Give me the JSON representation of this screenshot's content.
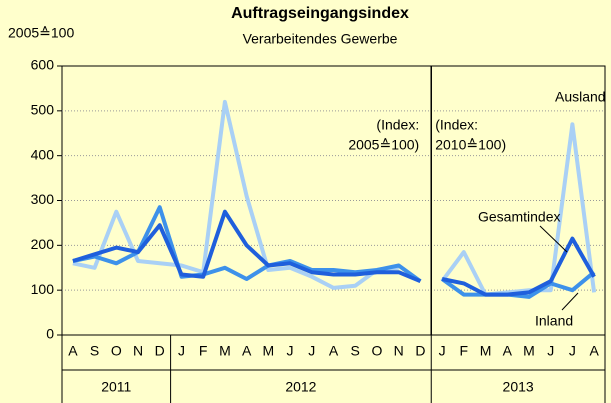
{
  "chart_data": {
    "type": "line",
    "title": "Auftragseingangsindex",
    "subtitle": "Verarbeitendes Gewerbe",
    "y_unit": "2005≙100",
    "categories": [
      "A",
      "S",
      "O",
      "N",
      "D",
      "J",
      "F",
      "M",
      "A",
      "M",
      "J",
      "J",
      "A",
      "S",
      "O",
      "N",
      "D",
      "J",
      "F",
      "M",
      "A",
      "M",
      "J",
      "J",
      "A"
    ],
    "years": [
      {
        "label": "2011",
        "months": 5
      },
      {
        "label": "2012",
        "months": 12
      },
      {
        "label": "2013",
        "months": 8
      }
    ],
    "index_bases": [
      {
        "lines": [
          "(Index:",
          "2005≙100)"
        ],
        "n_years": 2
      },
      {
        "lines": [
          "(Index:",
          "2010≙100)"
        ],
        "n_years": 1
      }
    ],
    "series": [
      {
        "name": "Ausland",
        "color": "#a9d0f5",
        "values": [
          160,
          150,
          275,
          165,
          160,
          155,
          140,
          520,
          310,
          145,
          150,
          130,
          105,
          110,
          145,
          150,
          null,
          120,
          185,
          90,
          95,
          100,
          100,
          470,
          95
        ]
      },
      {
        "name": "Inland",
        "color": "#3d91ea",
        "values": [
          165,
          175,
          160,
          185,
          285,
          130,
          135,
          150,
          125,
          155,
          165,
          145,
          145,
          140,
          145,
          155,
          120,
          125,
          90,
          90,
          90,
          85,
          115,
          100,
          140
        ]
      },
      {
        "name": "Gesamtindex",
        "color": "#1f5fdc",
        "values": [
          165,
          180,
          195,
          185,
          245,
          135,
          130,
          275,
          200,
          155,
          160,
          140,
          135,
          135,
          140,
          140,
          120,
          125,
          115,
          90,
          90,
          95,
          120,
          215,
          130
        ]
      }
    ],
    "ylim": [
      0,
      600
    ],
    "yticks": [
      0,
      100,
      200,
      300,
      400,
      500,
      600
    ],
    "grid": true
  }
}
